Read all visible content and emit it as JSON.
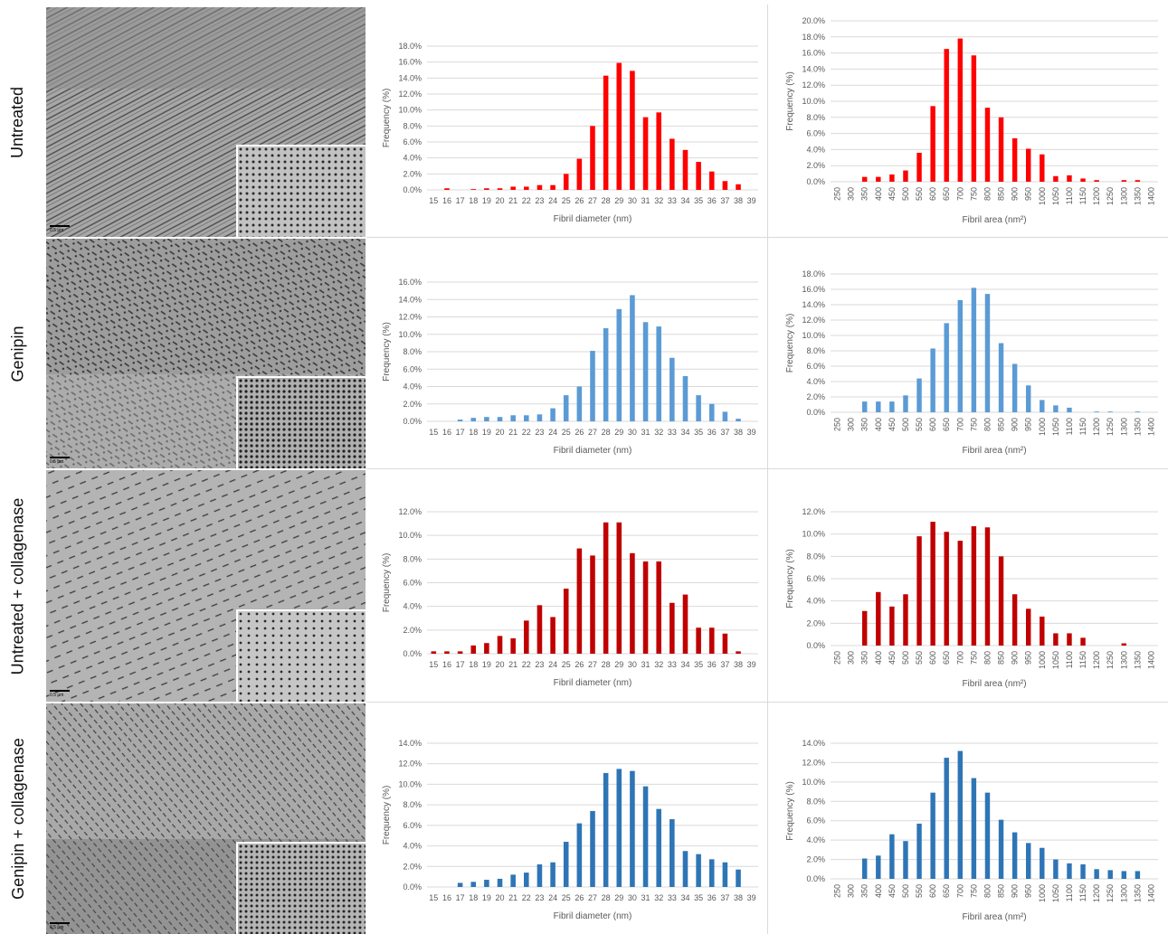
{
  "rows": [
    {
      "label": "Untreated",
      "scale_label": "0.5 µm"
    },
    {
      "label": "Genipin",
      "scale_label": "0.5 µm"
    },
    {
      "label": "Untreated + collagenase",
      "scale_label": "0.5 µm"
    },
    {
      "label": "Genipin + collagenase",
      "scale_label": "0.5 µm"
    }
  ],
  "colors": {
    "red": "#ff0000",
    "light_blue": "#5b9bd5",
    "dark_red": "#c00000",
    "blue": "#2e75b6",
    "grid": "#d9d9d9",
    "text": "#595959"
  },
  "chart_data": [
    {
      "type": "bar",
      "row": 0,
      "color": "#ff0000",
      "xlabel": "Fibril diameter (nm)",
      "ylabel": "Frequency (%)",
      "ylim": [
        0,
        18
      ],
      "ystep": 2,
      "grid": true,
      "categories": [
        "15",
        "16",
        "17",
        "18",
        "19",
        "20",
        "21",
        "22",
        "23",
        "24",
        "25",
        "26",
        "27",
        "28",
        "29",
        "30",
        "31",
        "32",
        "33",
        "34",
        "35",
        "36",
        "37",
        "38",
        "39"
      ],
      "values": [
        0.0,
        0.2,
        0.0,
        0.1,
        0.2,
        0.2,
        0.4,
        0.4,
        0.6,
        0.6,
        2.0,
        3.9,
        8.0,
        14.3,
        15.9,
        14.9,
        9.1,
        9.7,
        6.4,
        5.0,
        3.5,
        2.3,
        1.1,
        0.7,
        0.0
      ]
    },
    {
      "type": "bar",
      "row": 0,
      "color": "#ff0000",
      "xlabel": "Fibril area (nm²)",
      "ylabel": "Frequency (%)",
      "ylim": [
        0,
        20
      ],
      "ystep": 2,
      "grid": true,
      "categories": [
        "250",
        "300",
        "350",
        "400",
        "450",
        "500",
        "550",
        "600",
        "650",
        "700",
        "750",
        "800",
        "850",
        "900",
        "950",
        "1000",
        "1050",
        "1100",
        "1150",
        "1200",
        "1250",
        "1300",
        "1350",
        "1400"
      ],
      "values": [
        0.0,
        0.0,
        0.6,
        0.6,
        0.9,
        1.4,
        3.6,
        9.4,
        16.5,
        17.8,
        15.7,
        9.2,
        8.0,
        5.4,
        4.1,
        3.4,
        0.7,
        0.8,
        0.4,
        0.2,
        0.0,
        0.2,
        0.2,
        0.0
      ]
    },
    {
      "type": "bar",
      "row": 1,
      "color": "#5b9bd5",
      "xlabel": "Fibril diameter (nm)",
      "ylabel": "Frequency (%)",
      "ylim": [
        0,
        16
      ],
      "ystep": 2,
      "grid": true,
      "categories": [
        "15",
        "16",
        "17",
        "18",
        "19",
        "20",
        "21",
        "22",
        "23",
        "24",
        "25",
        "26",
        "27",
        "28",
        "29",
        "30",
        "31",
        "32",
        "33",
        "34",
        "35",
        "36",
        "37",
        "38",
        "39"
      ],
      "values": [
        0.0,
        0.0,
        0.2,
        0.4,
        0.5,
        0.5,
        0.7,
        0.7,
        0.8,
        1.5,
        3.0,
        4.0,
        8.1,
        10.7,
        12.9,
        14.5,
        11.4,
        10.9,
        7.3,
        5.2,
        3.0,
        2.0,
        1.1,
        0.3,
        0.0
      ]
    },
    {
      "type": "bar",
      "row": 1,
      "color": "#5b9bd5",
      "xlabel": "Fibril area (nm²)",
      "ylabel": "Frequency (%)",
      "ylim": [
        0,
        18
      ],
      "ystep": 2,
      "grid": true,
      "categories": [
        "250",
        "300",
        "350",
        "400",
        "450",
        "500",
        "550",
        "600",
        "650",
        "700",
        "750",
        "800",
        "850",
        "900",
        "950",
        "1000",
        "1050",
        "1100",
        "1150",
        "1200",
        "1250",
        "1300",
        "1350",
        "1400"
      ],
      "values": [
        0.0,
        0.0,
        1.4,
        1.4,
        1.4,
        2.2,
        4.4,
        8.3,
        11.6,
        14.6,
        16.2,
        15.4,
        9.0,
        6.3,
        3.5,
        1.6,
        0.9,
        0.6,
        0.0,
        0.1,
        0.1,
        0.0,
        0.1,
        0.0
      ]
    },
    {
      "type": "bar",
      "row": 2,
      "color": "#c00000",
      "xlabel": "Fibril diameter (nm)",
      "ylabel": "Frequency (%)",
      "ylim": [
        0,
        12
      ],
      "ystep": 2,
      "grid": true,
      "categories": [
        "15",
        "16",
        "17",
        "18",
        "19",
        "20",
        "21",
        "22",
        "23",
        "24",
        "25",
        "26",
        "27",
        "28",
        "29",
        "30",
        "31",
        "32",
        "33",
        "34",
        "35",
        "36",
        "37",
        "38",
        "39"
      ],
      "values": [
        0.2,
        0.2,
        0.2,
        0.7,
        0.9,
        1.5,
        1.3,
        2.8,
        4.1,
        3.1,
        5.5,
        8.9,
        8.3,
        11.1,
        11.1,
        8.5,
        7.8,
        7.8,
        4.3,
        5.0,
        2.2,
        2.2,
        1.7,
        0.2,
        0.0
      ]
    },
    {
      "type": "bar",
      "row": 2,
      "color": "#c00000",
      "xlabel": "Fibril area (nm²)",
      "ylabel": "Frequency (%)",
      "ylim": [
        0,
        12
      ],
      "ystep": 2,
      "grid": true,
      "categories": [
        "250",
        "300",
        "350",
        "400",
        "450",
        "500",
        "550",
        "600",
        "650",
        "700",
        "750",
        "800",
        "850",
        "900",
        "950",
        "1000",
        "1050",
        "1100",
        "1150",
        "1200",
        "1250",
        "1300",
        "1350",
        "1400"
      ],
      "values": [
        0.0,
        0.0,
        3.1,
        4.8,
        3.5,
        4.6,
        9.8,
        11.1,
        10.2,
        9.4,
        10.7,
        10.6,
        8.0,
        4.6,
        3.3,
        2.6,
        1.1,
        1.1,
        0.7,
        0.0,
        0.0,
        0.2,
        0.0,
        0.0
      ]
    },
    {
      "type": "bar",
      "row": 3,
      "color": "#2e75b6",
      "xlabel": "Fibril diameter (nm)",
      "ylabel": "Frequency (%)",
      "ylim": [
        0,
        14
      ],
      "ystep": 2,
      "grid": true,
      "categories": [
        "15",
        "16",
        "17",
        "18",
        "19",
        "20",
        "21",
        "22",
        "23",
        "24",
        "25",
        "26",
        "27",
        "28",
        "29",
        "30",
        "31",
        "32",
        "33",
        "34",
        "35",
        "36",
        "37",
        "38",
        "39"
      ],
      "values": [
        0.0,
        0.0,
        0.4,
        0.5,
        0.7,
        0.8,
        1.2,
        1.4,
        2.2,
        2.4,
        4.4,
        6.2,
        7.4,
        11.1,
        11.5,
        11.3,
        9.8,
        7.6,
        6.6,
        3.5,
        3.2,
        2.7,
        2.4,
        1.7,
        0.0
      ]
    },
    {
      "type": "bar",
      "row": 3,
      "color": "#2e75b6",
      "xlabel": "Fibril area (nm²)",
      "ylabel": "Frequency (%)",
      "ylim": [
        0,
        14
      ],
      "ystep": 2,
      "grid": true,
      "categories": [
        "250",
        "300",
        "350",
        "400",
        "450",
        "500",
        "550",
        "600",
        "650",
        "700",
        "750",
        "800",
        "850",
        "900",
        "950",
        "1000",
        "1050",
        "1100",
        "1150",
        "1200",
        "1250",
        "1300",
        "1350",
        "1400"
      ],
      "values": [
        0.0,
        0.0,
        2.1,
        2.4,
        4.6,
        3.9,
        5.7,
        8.9,
        12.5,
        13.2,
        10.4,
        8.9,
        6.1,
        4.8,
        3.7,
        3.2,
        2.0,
        1.6,
        1.5,
        1.0,
        0.9,
        0.8,
        0.8,
        0.0
      ]
    }
  ]
}
